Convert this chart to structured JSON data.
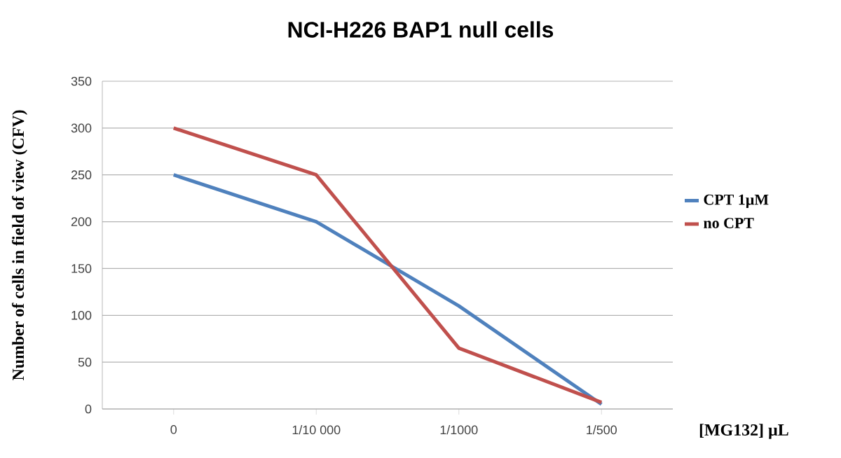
{
  "chart_data": {
    "type": "line",
    "title": "NCI-H226 BAP1 null cells",
    "xlabel": "[MG132] µL",
    "ylabel": "Number of cells in field of view (CFV)",
    "categories": [
      "0",
      "1/10 000",
      "1/1000",
      "1/500"
    ],
    "series": [
      {
        "name": "CPT 1µM",
        "color": "#4f81bd",
        "values": [
          250,
          200,
          110,
          5
        ]
      },
      {
        "name": "no CPT",
        "color": "#c0504d",
        "values": [
          300,
          250,
          65,
          7
        ]
      }
    ],
    "ylim": [
      0,
      350
    ],
    "yticks": [
      0,
      50,
      100,
      150,
      200,
      250,
      300,
      350
    ],
    "grid": "y",
    "legend": "right",
    "marker": "none"
  }
}
